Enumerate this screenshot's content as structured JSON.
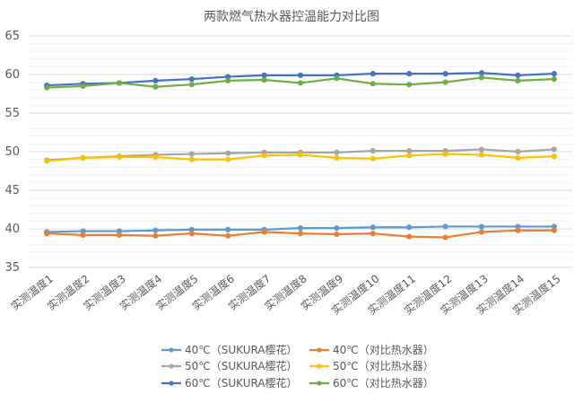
{
  "chart_data": {
    "type": "line",
    "title": "两款燃气热水器控温能力对比图",
    "xlabel": "",
    "ylabel": "",
    "categories": [
      "实测温度1",
      "实测温度2",
      "实测温度3",
      "实测温度4",
      "实测温度5",
      "实测温度6",
      "实测温度7",
      "实测温度8",
      "实测温度9",
      "实测温度10",
      "实测温度11",
      "实测温度12",
      "实测温度13",
      "实测温度14",
      "实测温度15"
    ],
    "ylim": [
      35,
      65
    ],
    "yticks": [
      35,
      40,
      45,
      50,
      55,
      60,
      65
    ],
    "grid": true,
    "legend_position": "bottom",
    "series": [
      {
        "name": "40℃（SUKURA樱花）",
        "color": "#5b9bd5",
        "values": [
          39.6,
          39.7,
          39.7,
          39.8,
          39.9,
          39.9,
          39.9,
          40.1,
          40.1,
          40.2,
          40.2,
          40.3,
          40.3,
          40.3,
          40.3
        ]
      },
      {
        "name": "40℃（对比热水器）",
        "color": "#ed7d31",
        "values": [
          39.4,
          39.2,
          39.2,
          39.1,
          39.4,
          39.1,
          39.6,
          39.4,
          39.3,
          39.4,
          39.0,
          38.9,
          39.6,
          39.8,
          39.8
        ]
      },
      {
        "name": "50℃（SUKURA樱花）",
        "color": "#a5a5a5",
        "values": [
          48.9,
          49.2,
          49.4,
          49.6,
          49.7,
          49.8,
          49.9,
          49.9,
          49.9,
          50.1,
          50.1,
          50.1,
          50.3,
          50.0,
          50.3
        ]
      },
      {
        "name": "50℃（对比热水器）",
        "color": "#ffc000",
        "values": [
          48.8,
          49.2,
          49.3,
          49.3,
          49.0,
          49.0,
          49.5,
          49.6,
          49.2,
          49.1,
          49.5,
          49.7,
          49.6,
          49.2,
          49.4
        ]
      },
      {
        "name": "60℃（SUKURA樱花）",
        "color": "#4472c4",
        "values": [
          58.6,
          58.8,
          58.9,
          59.2,
          59.4,
          59.7,
          59.9,
          59.9,
          59.9,
          60.1,
          60.1,
          60.1,
          60.2,
          59.9,
          60.1
        ]
      },
      {
        "name": "60℃（对比热水器）",
        "color": "#70ad47",
        "values": [
          58.3,
          58.5,
          58.9,
          58.4,
          58.7,
          59.2,
          59.3,
          58.9,
          59.5,
          58.8,
          58.7,
          59.0,
          59.6,
          59.2,
          59.4
        ]
      }
    ]
  }
}
